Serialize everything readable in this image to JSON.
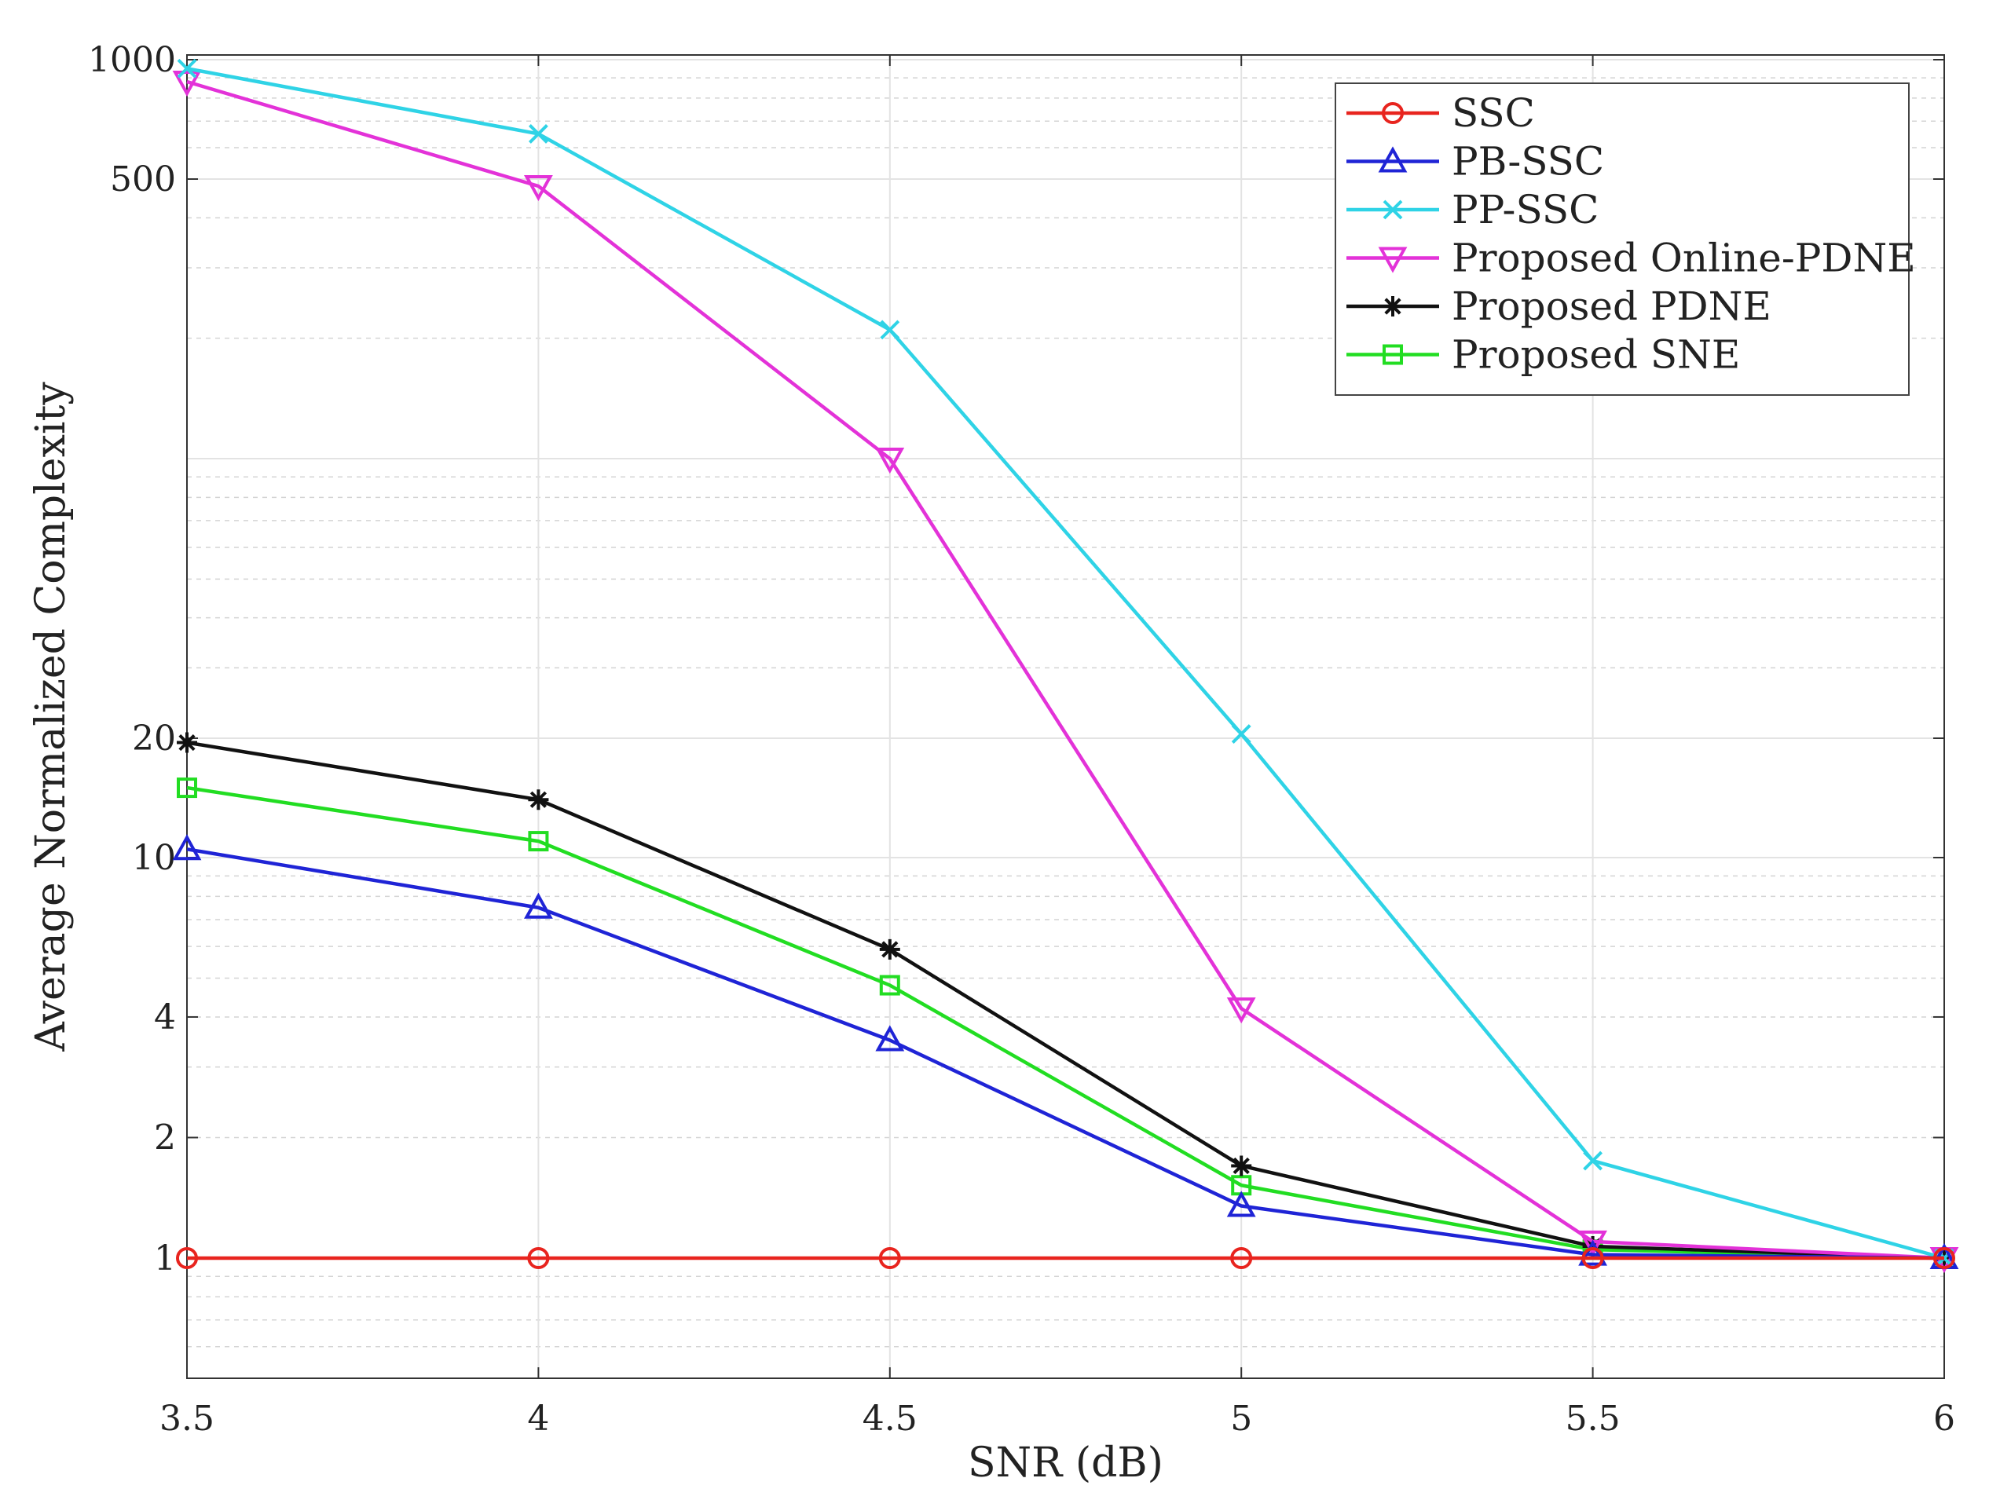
{
  "chart_data": {
    "type": "line",
    "title": "",
    "xlabel": "SNR (dB)",
    "ylabel": "Average Normalized Complexity",
    "x": [
      3.5,
      4,
      4.5,
      5,
      5.5,
      6
    ],
    "xlim": [
      3.5,
      6
    ],
    "ylim_display": [
      0.5,
      1000
    ],
    "x_tick_labels": [
      "3.5",
      "4",
      "4.5",
      "5",
      "5.5",
      "6"
    ],
    "y_tick_labels": [
      "1000",
      "500",
      "20",
      "10",
      "4",
      "2",
      "1"
    ],
    "grid": true,
    "legend_position": "top-right",
    "series": [
      {
        "name": "SSC",
        "color": "#e8241e",
        "marker": "circle",
        "values": [
          1,
          1,
          1,
          1,
          1,
          1
        ]
      },
      {
        "name": "PB-SSC",
        "color": "#1f24d6",
        "marker": "triangle-up",
        "values": [
          10.5,
          7.5,
          3.5,
          1.35,
          1.02,
          1.0
        ]
      },
      {
        "name": "PP-SSC",
        "color": "#2fd3e6",
        "marker": "x",
        "values": [
          950,
          650,
          210,
          20.5,
          1.75,
          1.0
        ]
      },
      {
        "name": "Proposed Online-PDNE",
        "color": "#e332d8",
        "marker": "triangle-down",
        "values": [
          880,
          480,
          100,
          4.2,
          1.1,
          1.0
        ]
      },
      {
        "name": "Proposed PDNE",
        "color": "#111111",
        "marker": "asterisk",
        "values": [
          19.5,
          14,
          5.9,
          1.7,
          1.07,
          1.0
        ]
      },
      {
        "name": "Proposed SNE",
        "color": "#22dd22",
        "marker": "square",
        "values": [
          15,
          11,
          4.8,
          1.52,
          1.05,
          1.0
        ]
      }
    ]
  }
}
